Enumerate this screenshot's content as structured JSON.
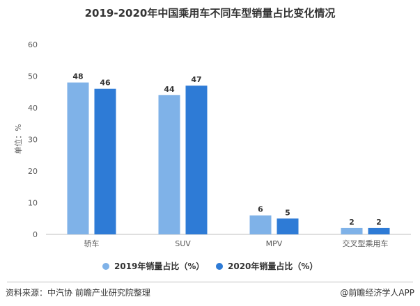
{
  "chart_data": {
    "type": "bar",
    "title": "2019-2020年中国乘用车不同车型销量占比变化情况",
    "ylabel": "单位：%",
    "xlabel": "",
    "ylim": [
      0,
      60
    ],
    "yticks": [
      0,
      10,
      20,
      30,
      40,
      50,
      60
    ],
    "categories": [
      "轿车",
      "SUV",
      "MPV",
      "交叉型乘用车"
    ],
    "series": [
      {
        "name": "2019年销量占比（%）",
        "color": "#7fb2e8",
        "values": [
          48,
          44,
          6,
          2
        ]
      },
      {
        "name": "2020年销量占比（%）",
        "color": "#2e7bd6",
        "values": [
          46,
          47,
          5,
          2
        ]
      }
    ],
    "grid": false,
    "legend": "bottom",
    "data_labels": true
  },
  "footer": {
    "source": "资料来源：中汽协 前瞻产业研究院整理",
    "brand": "@前瞻经济学人APP"
  }
}
